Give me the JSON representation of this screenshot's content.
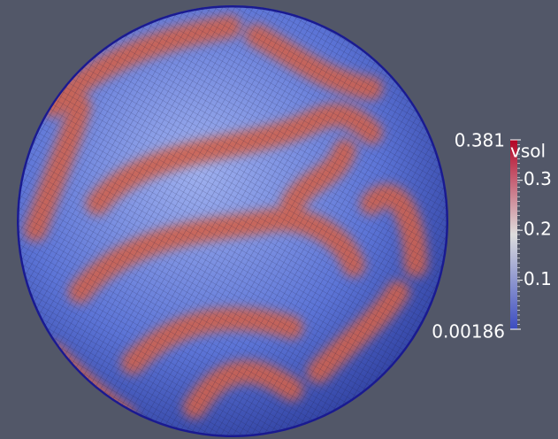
{
  "colorbar": {
    "title": "vsol",
    "range": [
      0.00186,
      0.381
    ],
    "ticks": [
      0.1,
      0.2,
      0.3
    ]
  }
}
